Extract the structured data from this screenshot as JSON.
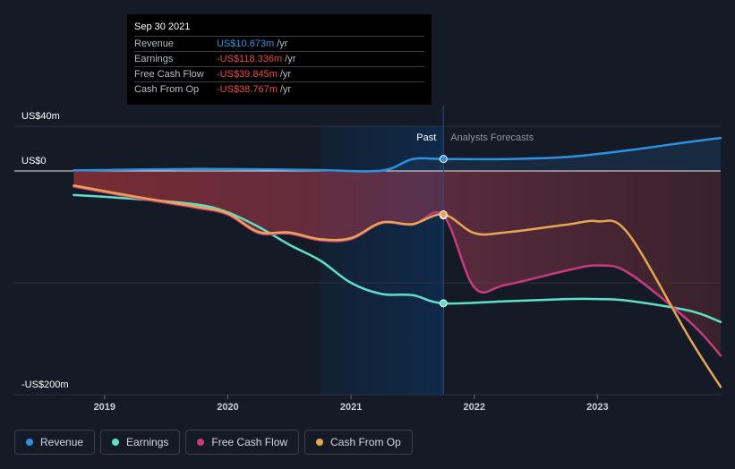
{
  "colors": {
    "revenue": "#2d90e2",
    "earnings": "#5ee0c8",
    "fcf": "#c73b7c",
    "cfo": "#e8a652",
    "background": "#151b26",
    "past_highlight": "#0f2a4a"
  },
  "tooltip": {
    "date": "Sep 30 2021",
    "rows": [
      {
        "label": "Revenue",
        "value": "US$10.673m",
        "unit": "/yr",
        "color": "#2d90e2"
      },
      {
        "label": "Earnings",
        "value": "-US$118.336m",
        "unit": "/yr",
        "color": "#f04646"
      },
      {
        "label": "Free Cash Flow",
        "value": "-US$39.845m",
        "unit": "/yr",
        "color": "#f04646"
      },
      {
        "label": "Cash From Op",
        "value": "-US$38.767m",
        "unit": "/yr",
        "color": "#f04646"
      }
    ]
  },
  "labels": {
    "past": "Past",
    "forecast": "Analysts Forecasts"
  },
  "legend": [
    {
      "label": "Revenue",
      "color": "#2d90e2"
    },
    {
      "label": "Earnings",
      "color": "#5ee0c8"
    },
    {
      "label": "Free Cash Flow",
      "color": "#c73b7c"
    },
    {
      "label": "Cash From Op",
      "color": "#e8a652"
    }
  ],
  "chart_data": {
    "type": "line",
    "y_unit": "US$m",
    "ylim": [
      -200,
      40
    ],
    "y_ticks": [
      {
        "value": 40,
        "label": "US$40m"
      },
      {
        "value": 0,
        "label": "US$0"
      },
      {
        "value": -200,
        "label": "-US$200m"
      }
    ],
    "x_ticks": [
      {
        "value": 2019,
        "label": "2019"
      },
      {
        "value": 2020,
        "label": "2020"
      },
      {
        "value": 2021,
        "label": "2021"
      },
      {
        "value": 2022,
        "label": "2022"
      },
      {
        "value": 2023,
        "label": "2023"
      }
    ],
    "xlim": [
      2018.5,
      2024.0
    ],
    "past_region": [
      2020.75,
      2021.75
    ],
    "today": 2021.75,
    "series": [
      {
        "name": "Revenue",
        "color": "#2d90e2",
        "points": [
          [
            2018.75,
            0.5
          ],
          [
            2019.25,
            1.2
          ],
          [
            2019.75,
            1.8
          ],
          [
            2020.25,
            1.5
          ],
          [
            2020.75,
            0.8
          ],
          [
            2021.25,
            0.3
          ],
          [
            2021.5,
            10.6
          ],
          [
            2021.75,
            10.7
          ],
          [
            2022.25,
            10.6
          ],
          [
            2022.75,
            12.5
          ],
          [
            2023.25,
            18.5
          ],
          [
            2023.75,
            26
          ],
          [
            2024.0,
            29.5
          ]
        ]
      },
      {
        "name": "Earnings",
        "color": "#5ee0c8",
        "points": [
          [
            2018.75,
            -21.5
          ],
          [
            2019.25,
            -25
          ],
          [
            2019.75,
            -30
          ],
          [
            2020.0,
            -37
          ],
          [
            2020.25,
            -50
          ],
          [
            2020.5,
            -66
          ],
          [
            2020.75,
            -80
          ],
          [
            2021.0,
            -100
          ],
          [
            2021.25,
            -110
          ],
          [
            2021.5,
            -111
          ],
          [
            2021.75,
            -118.3
          ],
          [
            2022.25,
            -116.5
          ],
          [
            2022.75,
            -114.5
          ],
          [
            2023.0,
            -114.5
          ],
          [
            2023.25,
            -116
          ],
          [
            2023.75,
            -125
          ],
          [
            2024.0,
            -135
          ]
        ]
      },
      {
        "name": "Free Cash Flow",
        "color": "#c73b7c",
        "points": [
          [
            2018.75,
            -14
          ],
          [
            2019.25,
            -24
          ],
          [
            2019.75,
            -33
          ],
          [
            2020.0,
            -39
          ],
          [
            2020.25,
            -55.5
          ],
          [
            2020.5,
            -56
          ],
          [
            2020.75,
            -62
          ],
          [
            2021.0,
            -61
          ],
          [
            2021.25,
            -46.5
          ],
          [
            2021.5,
            -48
          ],
          [
            2021.75,
            -39.8
          ],
          [
            2022.0,
            -104
          ],
          [
            2022.25,
            -102
          ],
          [
            2022.75,
            -89
          ],
          [
            2023.0,
            -84.5
          ],
          [
            2023.25,
            -91
          ],
          [
            2023.75,
            -135
          ],
          [
            2024.0,
            -165
          ]
        ]
      },
      {
        "name": "Cash From Op",
        "color": "#e8a652",
        "points": [
          [
            2018.75,
            -13
          ],
          [
            2019.25,
            -23
          ],
          [
            2019.75,
            -32
          ],
          [
            2020.0,
            -38
          ],
          [
            2020.25,
            -54.5
          ],
          [
            2020.5,
            -55
          ],
          [
            2020.75,
            -61
          ],
          [
            2021.0,
            -60
          ],
          [
            2021.25,
            -46
          ],
          [
            2021.5,
            -47.5
          ],
          [
            2021.75,
            -38.8
          ],
          [
            2022.0,
            -55.5
          ],
          [
            2022.25,
            -55
          ],
          [
            2022.75,
            -48
          ],
          [
            2023.0,
            -45
          ],
          [
            2023.25,
            -56
          ],
          [
            2023.75,
            -150
          ],
          [
            2024.0,
            -193
          ]
        ]
      }
    ]
  }
}
